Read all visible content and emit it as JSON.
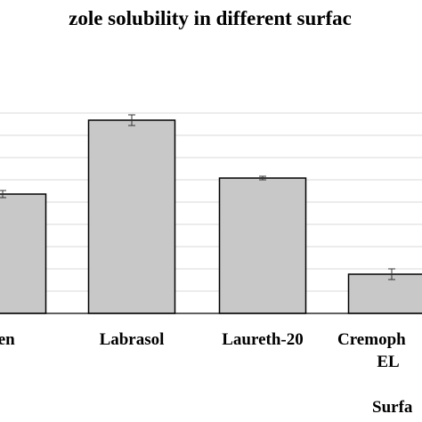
{
  "chart_data": {
    "type": "bar",
    "title": "zole solubility in different surfac",
    "xlabel": "Surfa",
    "ylabel": "",
    "categories": [
      [
        "een"
      ],
      [
        "Labrasol"
      ],
      [
        "Laureth-20"
      ],
      [
        "Cremoph",
        "EL"
      ]
    ],
    "values": [
      134,
      217,
      152,
      44
    ],
    "errors": [
      4,
      6,
      2,
      6
    ],
    "ylim": [
      0,
      248
    ],
    "grid": true,
    "legend": "none",
    "colors": {
      "bar_fill": "#c8c8c8",
      "bar_stroke": "#000000",
      "grid": "#d9d9d9",
      "axis": "#000000"
    }
  }
}
